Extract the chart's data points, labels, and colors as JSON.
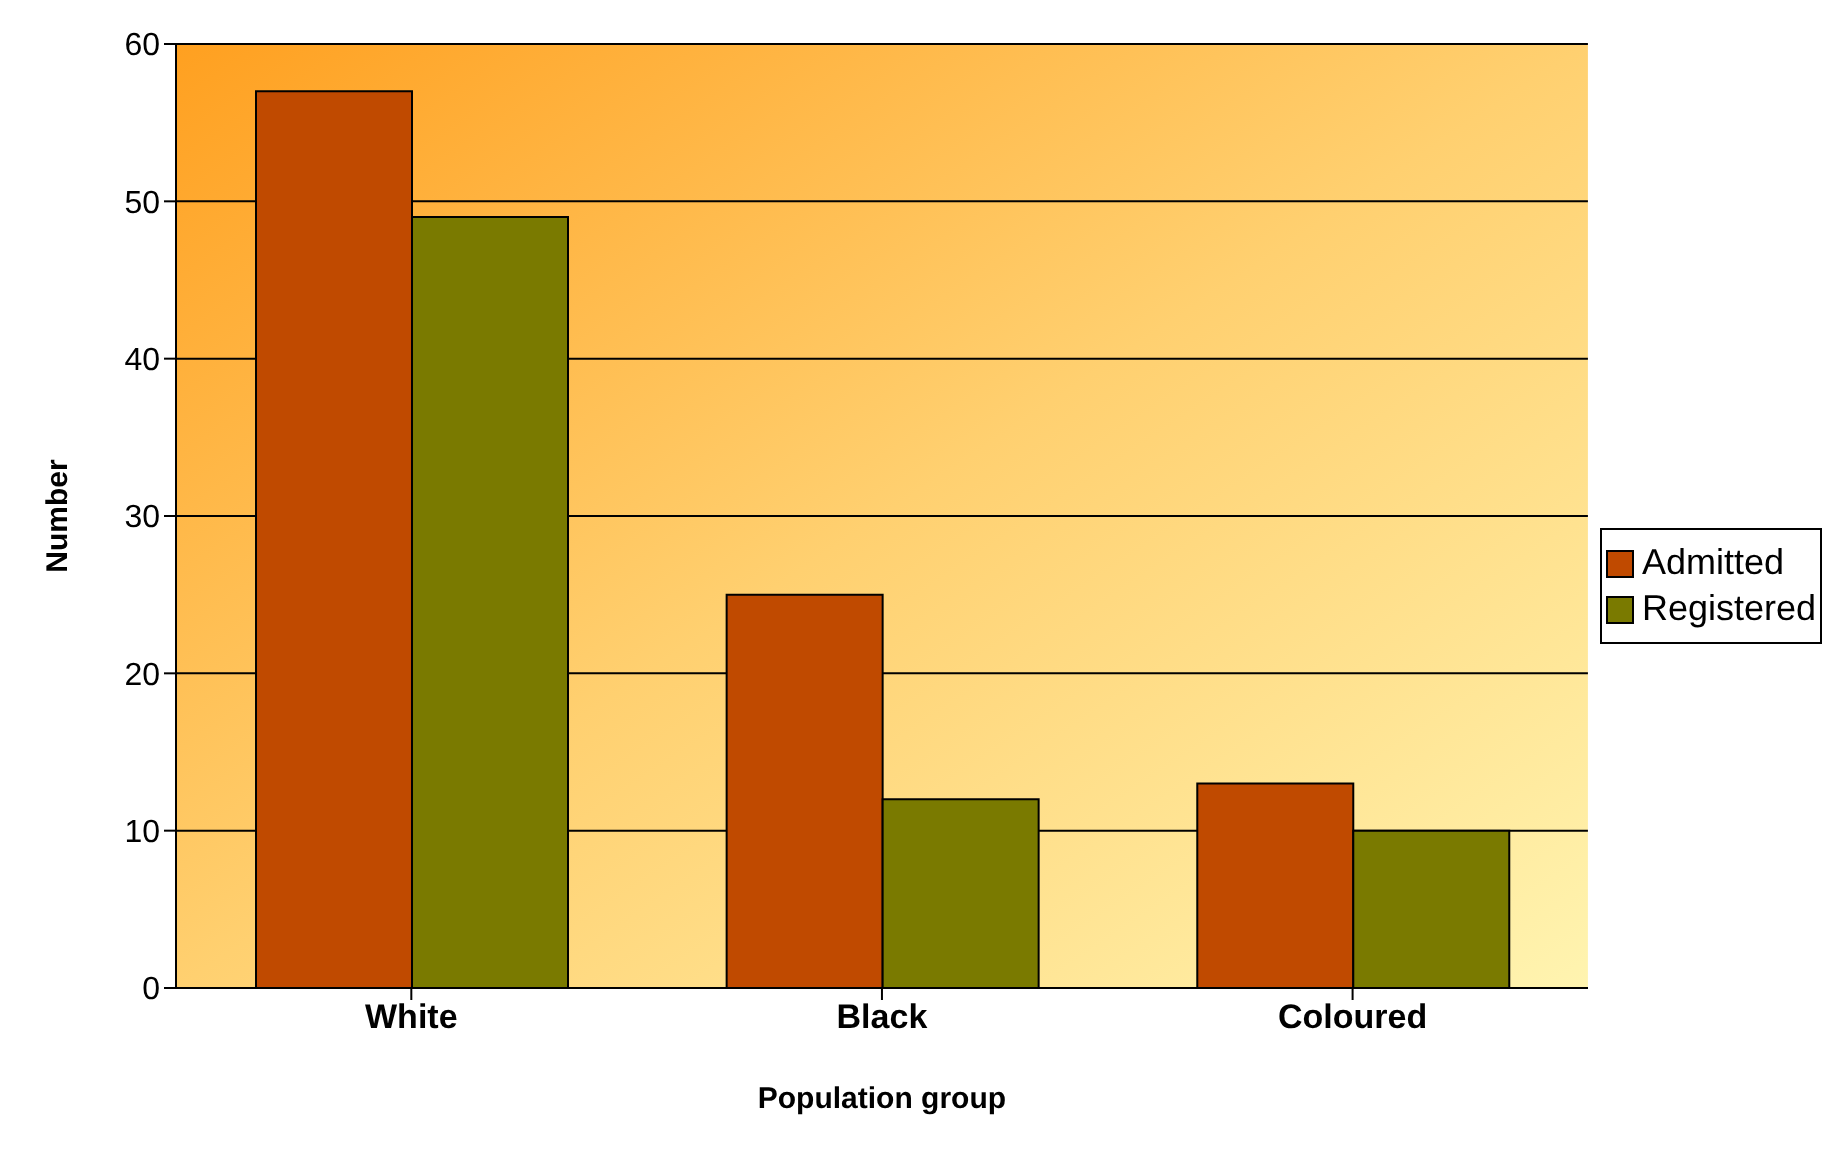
{
  "chart_data": {
    "type": "bar",
    "xlabel": "Population group",
    "ylabel": "Number",
    "categories": [
      "White",
      "Black",
      "Coloured"
    ],
    "series": [
      {
        "name": "Admitted",
        "color": "#c04a00",
        "values": [
          57,
          25,
          13
        ]
      },
      {
        "name": "Registered",
        "color": "#7a7a00",
        "values": [
          49,
          12,
          10
        ]
      }
    ],
    "ylim": [
      0,
      60
    ],
    "yticks": [
      0,
      10,
      20,
      30,
      40,
      50,
      60
    ],
    "grid": "y",
    "legend": "right"
  }
}
